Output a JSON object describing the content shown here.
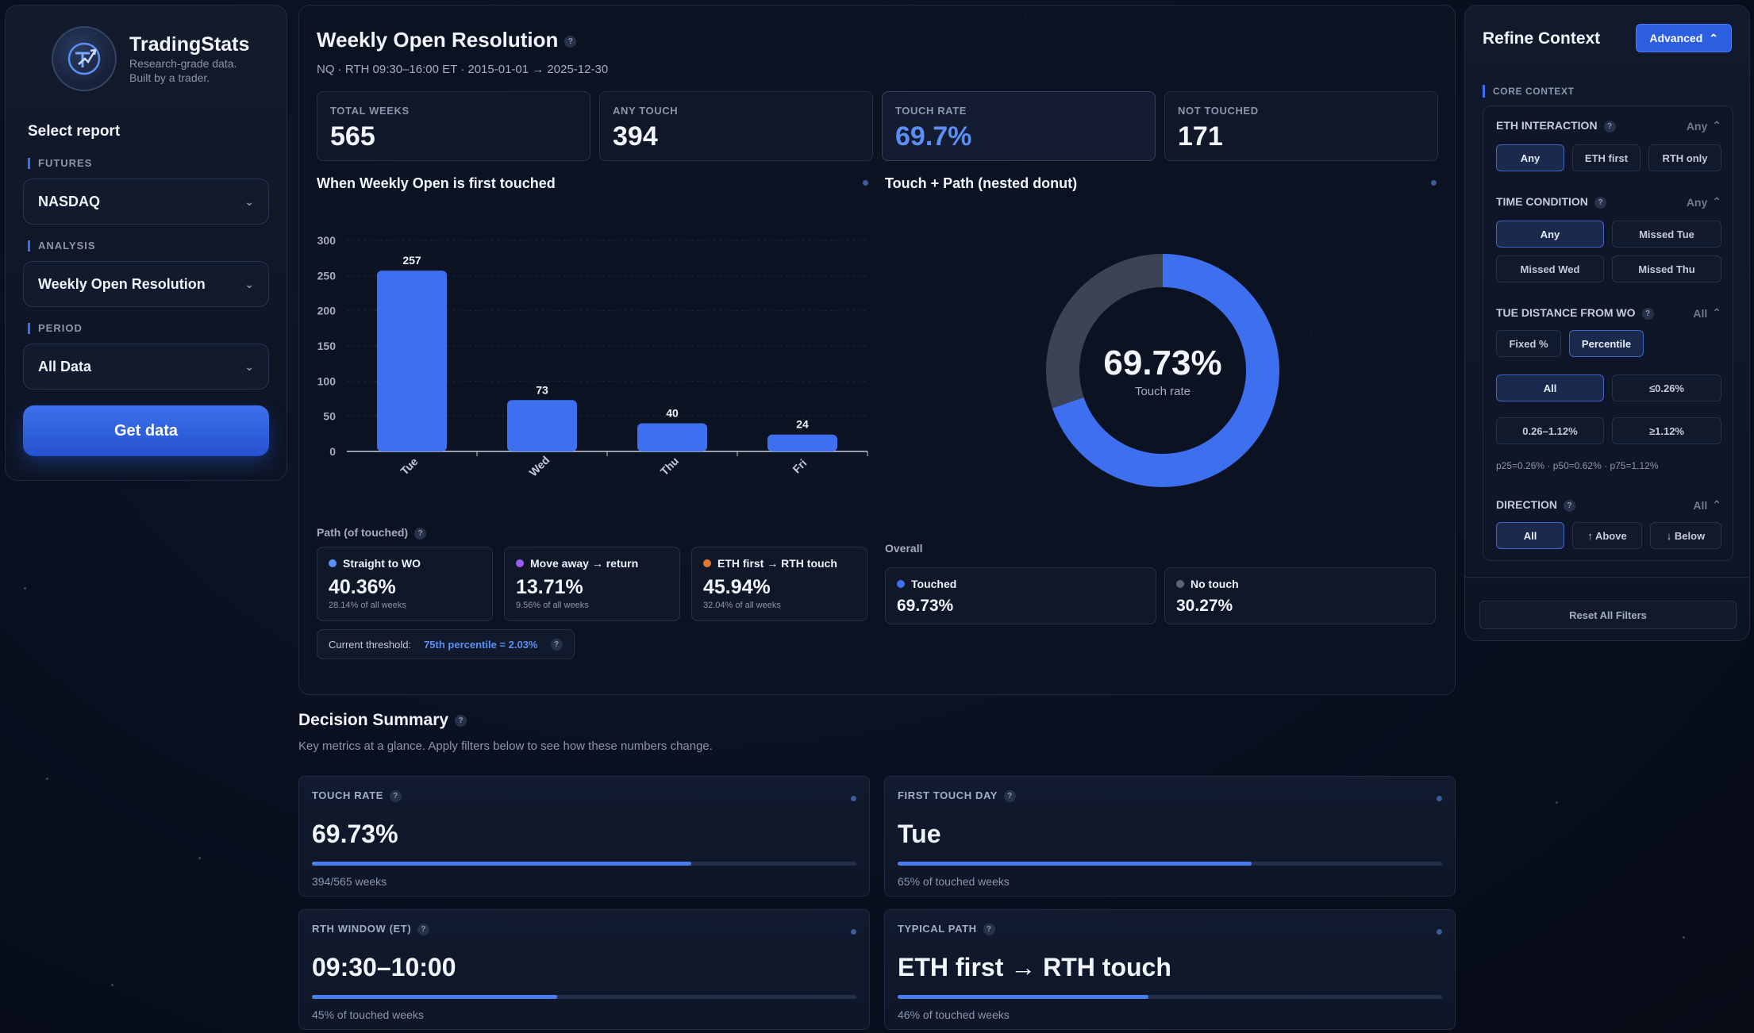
{
  "brand": {
    "name": "TradingStats",
    "tagline_1": "Research-grade data.",
    "tagline_2": "Built by a trader."
  },
  "sidebar": {
    "heading": "Select report",
    "futures_label": "FUTURES",
    "futures_value": "NASDAQ",
    "analysis_label": "ANALYSIS",
    "analysis_value": "Weekly Open Resolution",
    "period_label": "PERIOD",
    "period_value": "All Data",
    "get_data_label": "Get data"
  },
  "report": {
    "title": "Weekly Open Resolution",
    "subtitle": "NQ · RTH 09:30–16:00 ET · 2015-01-01 → 2025-12-30",
    "stats": [
      {
        "label": "TOTAL WEEKS",
        "value": "565"
      },
      {
        "label": "ANY TOUCH",
        "value": "394"
      },
      {
        "label": "TOUCH RATE",
        "value": "69.7%"
      },
      {
        "label": "NOT TOUCHED",
        "value": "171"
      }
    ],
    "bar_section_title": "When Weekly Open is first touched",
    "donut_section_title": "Touch + Path (nested donut)",
    "donut_center_value": "69.73%",
    "donut_center_label": "Touch rate",
    "path_title": "Path (of touched)",
    "paths": [
      {
        "label": "Straight to WO",
        "value": "40.36%",
        "sub": "28.14% of all weeks",
        "color": "#5b8ff5"
      },
      {
        "label": "Move away → return",
        "value": "13.71%",
        "sub": "9.56% of all weeks",
        "color": "#9a5cf0"
      },
      {
        "label": "ETH first → RTH touch",
        "value": "45.94%",
        "sub": "32.04% of all weeks",
        "color": "#e0782f"
      }
    ],
    "threshold_label": "Current threshold:",
    "threshold_value": "75th percentile = 2.03%",
    "overall_label": "Overall",
    "overall": [
      {
        "label": "Touched",
        "value": "69.73%",
        "color": "#3d6fee"
      },
      {
        "label": "No touch",
        "value": "30.27%",
        "color": "#5a6478"
      }
    ]
  },
  "chart_data": [
    {
      "type": "bar",
      "title": "When Weekly Open is first touched",
      "categories": [
        "Tue",
        "Wed",
        "Thu",
        "Fri"
      ],
      "values": [
        257,
        73,
        40,
        24
      ],
      "ylim": [
        0,
        300
      ],
      "yticks": [
        0,
        50,
        100,
        150,
        200,
        250,
        300
      ],
      "xlabel": "",
      "ylabel": "",
      "color": "#3d6fee",
      "grid": true
    },
    {
      "type": "pie",
      "title": "Touch + Path (nested donut)",
      "categories": [
        "Touched",
        "No touch"
      ],
      "values": [
        69.73,
        30.27
      ],
      "colors": [
        "#3d6fee",
        "#3b4457"
      ]
    }
  ],
  "summary": {
    "title": "Decision Summary",
    "subtitle": "Key metrics at a glance. Apply filters below to see how these numbers change.",
    "cards": [
      {
        "label": "TOUCH RATE",
        "value": "69.73%",
        "foot": "394/565 weeks",
        "fill": 0.6973
      },
      {
        "label": "FIRST TOUCH DAY",
        "value": "Tue",
        "foot": "65% of touched weeks",
        "fill": 0.65
      },
      {
        "label": "RTH WINDOW (ET)",
        "value": "09:30–10:00",
        "foot": "45% of touched weeks",
        "fill": 0.45
      },
      {
        "label": "TYPICAL PATH",
        "value": "ETH first → RTH touch",
        "foot": "46% of touched weeks",
        "fill": 0.46
      }
    ]
  },
  "refine": {
    "title": "Refine Context",
    "advanced_label": "Advanced",
    "core_label": "CORE CONTEXT",
    "eth": {
      "label": "ETH INTERACTION",
      "current": "Any",
      "options": [
        "Any",
        "ETH first",
        "RTH only"
      ],
      "selected": "Any"
    },
    "time": {
      "label": "TIME CONDITION",
      "current": "Any",
      "options": [
        "Any",
        "Missed Tue",
        "Missed Wed",
        "Missed Thu"
      ],
      "selected": "Any"
    },
    "tue_dist": {
      "label": "TUE DISTANCE FROM WO",
      "current": "All",
      "modes": [
        "Fixed %",
        "Percentile"
      ],
      "mode_selected": "Percentile",
      "options": [
        "All",
        "≤0.26%",
        "0.26–1.12%",
        "≥1.12%"
      ],
      "selected": "All",
      "note": "p25=0.26% · p50=0.62% · p75=1.12%"
    },
    "direction": {
      "label": "DIRECTION",
      "current": "All",
      "options": [
        "All",
        "↑ Above",
        "↓ Below"
      ],
      "selected": "All"
    },
    "reset_label": "Reset All Filters"
  }
}
